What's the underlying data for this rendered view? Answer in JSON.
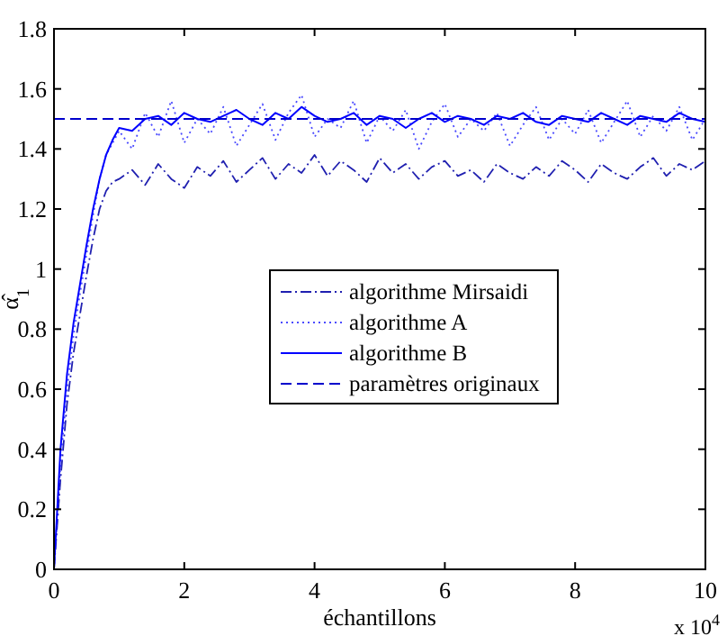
{
  "chart_data": {
    "type": "line",
    "xlabel": "échantillons",
    "ylabel": "α̂$_{1}$",
    "annotations": [
      "x 10$^{4}$"
    ],
    "x": [
      0,
      0.1,
      0.2,
      0.3,
      0.4,
      0.5,
      0.6,
      0.7,
      0.8,
      0.9,
      1.0,
      1.2,
      1.4,
      1.6,
      1.8,
      2.0,
      2.2,
      2.4,
      2.6,
      2.8,
      3.0,
      3.2,
      3.4,
      3.6,
      3.8,
      4.0,
      4.2,
      4.4,
      4.6,
      4.8,
      5.0,
      5.2,
      5.4,
      5.6,
      5.8,
      6.0,
      6.2,
      6.4,
      6.6,
      6.8,
      7.0,
      7.2,
      7.4,
      7.6,
      7.8,
      8.0,
      8.2,
      8.4,
      8.6,
      8.8,
      9.0,
      9.2,
      9.4,
      9.6,
      9.8,
      10.0
    ],
    "xlim": [
      0,
      10
    ],
    "xticks": [
      0,
      2,
      4,
      6,
      8,
      10
    ],
    "ylim": [
      0,
      1.8
    ],
    "yticks": [
      0,
      0.2,
      0.4,
      0.6,
      0.8,
      1,
      1.2,
      1.4,
      1.6,
      1.8
    ],
    "grid": false,
    "legend": "right",
    "series": [
      {
        "name": "algorithme Mirsaidi",
        "color": "#2020b0",
        "line_style": "dashdot",
        "values": [
          0,
          0.3,
          0.55,
          0.72,
          0.85,
          0.98,
          1.1,
          1.2,
          1.26,
          1.29,
          1.3,
          1.33,
          1.28,
          1.35,
          1.3,
          1.27,
          1.34,
          1.31,
          1.36,
          1.29,
          1.33,
          1.37,
          1.3,
          1.35,
          1.32,
          1.38,
          1.31,
          1.36,
          1.33,
          1.29,
          1.37,
          1.32,
          1.35,
          1.3,
          1.34,
          1.36,
          1.31,
          1.33,
          1.29,
          1.35,
          1.32,
          1.3,
          1.34,
          1.31,
          1.36,
          1.33,
          1.29,
          1.35,
          1.32,
          1.3,
          1.34,
          1.37,
          1.31,
          1.35,
          1.33,
          1.36
        ]
      },
      {
        "name": "algorithme A",
        "color": "#4a4aff",
        "line_style": "dotted",
        "values": [
          0,
          0.35,
          0.6,
          0.78,
          0.92,
          1.05,
          1.18,
          1.3,
          1.38,
          1.42,
          1.46,
          1.4,
          1.52,
          1.44,
          1.56,
          1.42,
          1.5,
          1.45,
          1.54,
          1.41,
          1.48,
          1.55,
          1.43,
          1.52,
          1.58,
          1.44,
          1.5,
          1.47,
          1.56,
          1.42,
          1.51,
          1.46,
          1.53,
          1.4,
          1.49,
          1.55,
          1.44,
          1.5,
          1.46,
          1.52,
          1.41,
          1.48,
          1.54,
          1.43,
          1.5,
          1.45,
          1.53,
          1.42,
          1.49,
          1.56,
          1.44,
          1.51,
          1.46,
          1.54,
          1.43,
          1.5
        ]
      },
      {
        "name": "algorithme B",
        "color": "#0000ff",
        "line_style": "solid",
        "values": [
          0,
          0.4,
          0.65,
          0.82,
          0.95,
          1.08,
          1.2,
          1.3,
          1.38,
          1.43,
          1.47,
          1.46,
          1.5,
          1.51,
          1.48,
          1.52,
          1.5,
          1.49,
          1.51,
          1.53,
          1.5,
          1.48,
          1.52,
          1.5,
          1.54,
          1.51,
          1.49,
          1.5,
          1.52,
          1.48,
          1.51,
          1.5,
          1.47,
          1.5,
          1.52,
          1.49,
          1.51,
          1.5,
          1.48,
          1.51,
          1.5,
          1.52,
          1.49,
          1.48,
          1.51,
          1.5,
          1.49,
          1.52,
          1.5,
          1.48,
          1.51,
          1.5,
          1.49,
          1.52,
          1.5,
          1.49
        ]
      },
      {
        "name": "paramètres originaux",
        "color": "#0000cc",
        "line_style": "dashed",
        "x": [
          0,
          10
        ],
        "values": [
          1.5,
          1.5
        ]
      }
    ]
  }
}
